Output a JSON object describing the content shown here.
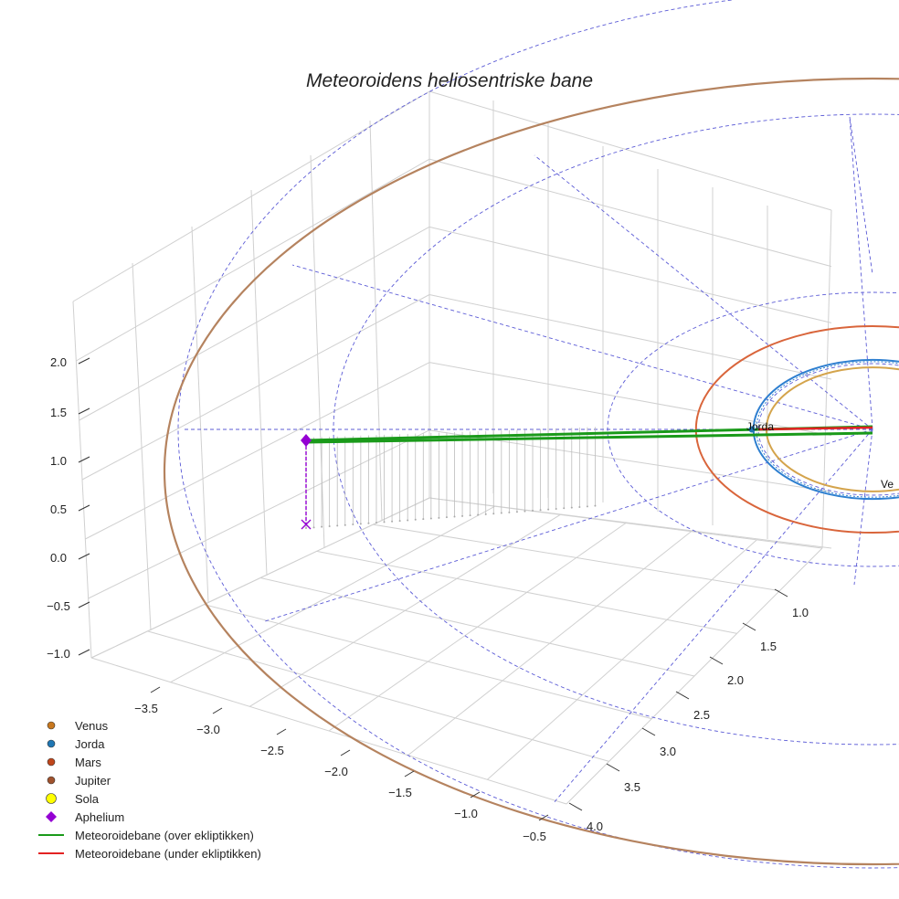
{
  "chart_data": {
    "type": "line",
    "title": "Meteoroidens heliosentriske bane",
    "xlabel": "",
    "ylabel": "",
    "zlabel": "",
    "x_ticks": [
      "−3.5",
      "−3.0",
      "−2.5",
      "−2.0",
      "−1.5",
      "−1.0",
      "−0.5"
    ],
    "y_ticks": [
      "1.0",
      "1.5",
      "2.0",
      "2.5",
      "3.0",
      "3.5",
      "4.0"
    ],
    "z_ticks": [
      "−1.0",
      "−0.5",
      "0.0",
      "0.5",
      "1.0",
      "1.5",
      "2.0"
    ],
    "grid": true,
    "legend_position": "bottom-left",
    "legend": [
      {
        "label": "Venus",
        "marker": "circle",
        "color": "#c8781e"
      },
      {
        "label": "Jorda",
        "marker": "circle",
        "color": "#1f77b4"
      },
      {
        "label": "Mars",
        "marker": "circle",
        "color": "#c0461b"
      },
      {
        "label": "Jupiter",
        "marker": "circle",
        "color": "#a0522d"
      },
      {
        "label": "Sola",
        "marker": "circle",
        "color": "#ffff00"
      },
      {
        "label": "Aphelium",
        "marker": "diamond",
        "color": "#9400d3"
      },
      {
        "label": "Meteoroidebane (over ekliptikken)",
        "marker": "line",
        "color": "#1a9a1a"
      },
      {
        "label": "Meteoroidebane (under ekliptikken)",
        "marker": "line",
        "color": "#e32222"
      }
    ],
    "annotations": [
      {
        "text": "Jorda",
        "color": "#1f77b4"
      },
      {
        "text": "Ve",
        "color": "#c8781e"
      }
    ],
    "series": [
      {
        "name": "Venus",
        "color": "#d4a44c",
        "orbit_radius_au": 0.72
      },
      {
        "name": "Jorda",
        "color": "#2e7fd0",
        "orbit_radius_au": 1.0
      },
      {
        "name": "Mars",
        "color": "#d9653b",
        "orbit_radius_au": 1.52
      },
      {
        "name": "Jupiter",
        "color": "#b5835f",
        "orbit_radius_au": 5.2
      },
      {
        "name": "Meteoroidebane (over ekliptikken)",
        "color": "#1a9a1a",
        "aphelion_au": -3.45
      },
      {
        "name": "Meteoroidebane (under ekliptikken)",
        "color": "#e32222"
      }
    ],
    "aphelion": {
      "color": "#9400d3"
    }
  }
}
